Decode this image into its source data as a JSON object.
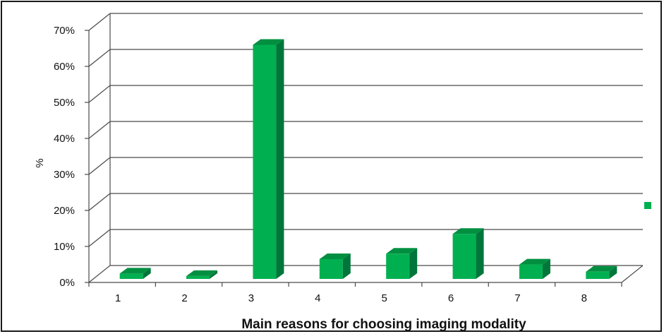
{
  "chart_data": {
    "type": "bar",
    "title": "",
    "xlabel": "Main reasons for choosing imaging modality",
    "ylabel": "%",
    "categories": [
      "1",
      "2",
      "3",
      "4",
      "5",
      "6",
      "7",
      "8"
    ],
    "values": [
      1.5,
      0.8,
      65,
      5.5,
      7,
      12.5,
      4,
      2
    ],
    "ylim": [
      0,
      70
    ],
    "yticks": [
      "0%",
      "10%",
      "20%",
      "30%",
      "40%",
      "50%",
      "60%",
      "70%"
    ],
    "grid": true,
    "legend": "right",
    "colors": {
      "bar_front": "#00b050",
      "bar_side": "#00763a",
      "bar_top": "#008f40",
      "grid": "#4a4a4a",
      "legend_marker": "#00b050"
    }
  }
}
